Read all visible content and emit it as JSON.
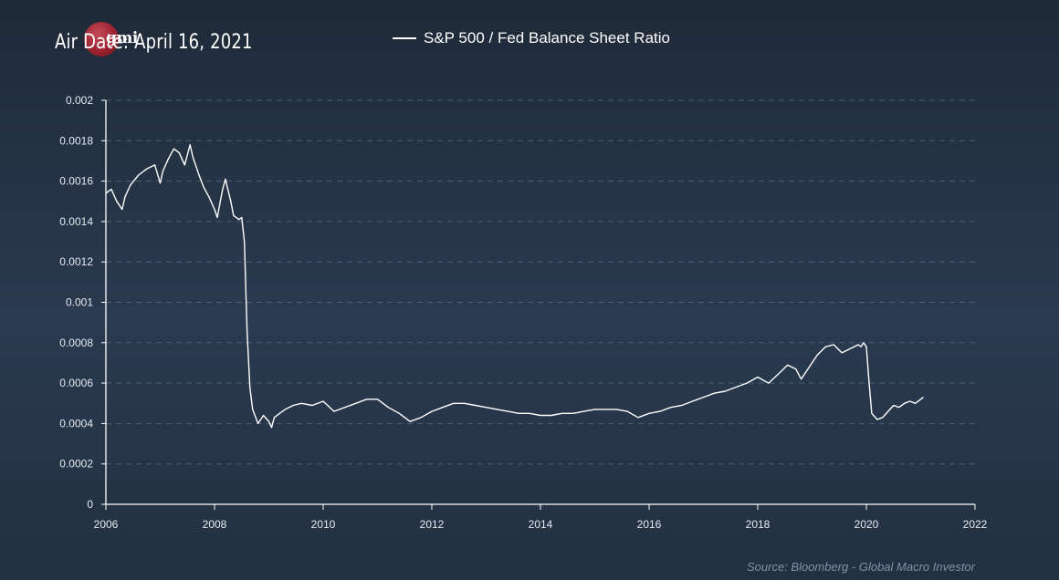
{
  "header": {
    "air_date": "Air Date: April 16, 2021",
    "logo_text": "gmi"
  },
  "source": "Source: Bloomberg - Global Macro Investor",
  "colors": {
    "line": "#ffffff",
    "grid": "#5d6f86",
    "axis": "#ffffff",
    "tick_label": "#e6ebf2",
    "logo": "#c0232f"
  },
  "chart_data": {
    "type": "line",
    "title": "",
    "xlabel": "",
    "ylabel": "",
    "legend": "top-center",
    "grid": "horizontal dashed",
    "xlim": [
      2006,
      2022
    ],
    "ylim": [
      0,
      0.002
    ],
    "x_ticks": [
      "2006",
      "2008",
      "2010",
      "2012",
      "2014",
      "2016",
      "2018",
      "2020",
      "2022"
    ],
    "y_ticks": [
      "0",
      "0.0002",
      "0.0004",
      "0.0006",
      "0.0008",
      "0.001",
      "0.0012",
      "0.0014",
      "0.0016",
      "0.0018",
      "0.002"
    ],
    "series": [
      {
        "name": "S&P 500 / Fed Balance Sheet Ratio",
        "x": [
          2006.0,
          2006.1,
          2006.2,
          2006.3,
          2006.35,
          2006.45,
          2006.6,
          2006.75,
          2006.9,
          2007.0,
          2007.05,
          2007.15,
          2007.25,
          2007.35,
          2007.45,
          2007.55,
          2007.6,
          2007.7,
          2007.8,
          2007.9,
          2008.0,
          2008.05,
          2008.1,
          2008.15,
          2008.2,
          2008.3,
          2008.35,
          2008.45,
          2008.5,
          2008.55,
          2008.6,
          2008.65,
          2008.7,
          2008.8,
          2008.9,
          2009.0,
          2009.05,
          2009.1,
          2009.2,
          2009.3,
          2009.45,
          2009.6,
          2009.8,
          2010.0,
          2010.2,
          2010.4,
          2010.6,
          2010.8,
          2011.0,
          2011.2,
          2011.4,
          2011.6,
          2011.8,
          2012.0,
          2012.2,
          2012.4,
          2012.6,
          2012.8,
          2013.0,
          2013.2,
          2013.4,
          2013.6,
          2013.8,
          2014.0,
          2014.2,
          2014.4,
          2014.6,
          2014.8,
          2015.0,
          2015.2,
          2015.4,
          2015.6,
          2015.8,
          2016.0,
          2016.2,
          2016.4,
          2016.6,
          2016.8,
          2017.0,
          2017.2,
          2017.4,
          2017.6,
          2017.8,
          2018.0,
          2018.2,
          2018.4,
          2018.55,
          2018.7,
          2018.8,
          2018.95,
          2019.1,
          2019.25,
          2019.4,
          2019.55,
          2019.7,
          2019.85,
          2019.9,
          2019.95,
          2020.0,
          2020.05,
          2020.1,
          2020.2,
          2020.3,
          2020.4,
          2020.5,
          2020.6,
          2020.7,
          2020.8,
          2020.9,
          2021.0,
          2021.05
        ],
        "y": [
          0.00154,
          0.00156,
          0.0015,
          0.00146,
          0.00152,
          0.00158,
          0.00163,
          0.00166,
          0.00168,
          0.00159,
          0.00165,
          0.00171,
          0.00176,
          0.00174,
          0.00168,
          0.00178,
          0.00172,
          0.00164,
          0.00157,
          0.00152,
          0.00146,
          0.00142,
          0.00149,
          0.00156,
          0.00161,
          0.0015,
          0.00143,
          0.00141,
          0.00142,
          0.0013,
          0.00085,
          0.00058,
          0.00047,
          0.0004,
          0.00044,
          0.00041,
          0.00038,
          0.00043,
          0.00045,
          0.00047,
          0.00049,
          0.0005,
          0.00049,
          0.00051,
          0.00046,
          0.00048,
          0.0005,
          0.00052,
          0.00052,
          0.00048,
          0.00045,
          0.00041,
          0.00043,
          0.00046,
          0.00048,
          0.0005,
          0.0005,
          0.00049,
          0.00048,
          0.00047,
          0.00046,
          0.00045,
          0.00045,
          0.00044,
          0.00044,
          0.00045,
          0.00045,
          0.00046,
          0.00047,
          0.00047,
          0.00047,
          0.00046,
          0.00043,
          0.00045,
          0.00046,
          0.00048,
          0.00049,
          0.00051,
          0.00053,
          0.00055,
          0.00056,
          0.00058,
          0.0006,
          0.00063,
          0.0006,
          0.00065,
          0.00069,
          0.00067,
          0.00062,
          0.00068,
          0.00074,
          0.00078,
          0.00079,
          0.00075,
          0.00077,
          0.00079,
          0.00078,
          0.0008,
          0.00078,
          0.0006,
          0.00045,
          0.00042,
          0.00043,
          0.00046,
          0.00049,
          0.00048,
          0.0005,
          0.00051,
          0.0005,
          0.00052,
          0.00053
        ]
      }
    ]
  }
}
